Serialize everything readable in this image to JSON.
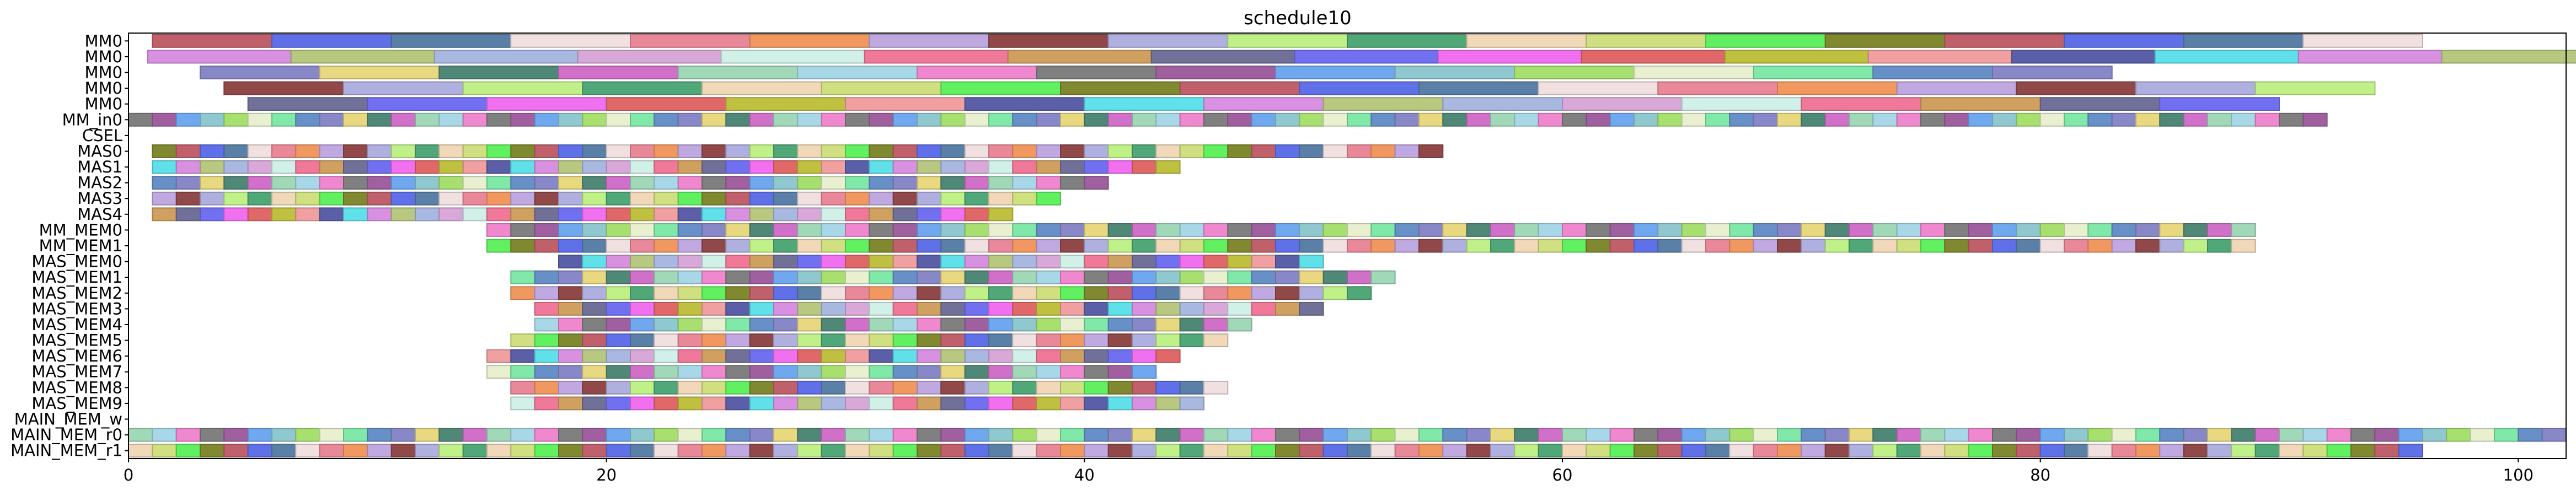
{
  "chart_data": {
    "type": "gantt",
    "title": "schedule10",
    "xlim": [
      0,
      102
    ],
    "xticks": [
      0,
      20,
      40,
      60,
      80,
      100
    ],
    "grid": false,
    "legend": "none",
    "rows": [
      "MM0",
      "MM0",
      "MM0",
      "MM0",
      "MM0",
      "MM_in0",
      "CSEL",
      "MAS0",
      "MAS1",
      "MAS2",
      "MAS3",
      "MAS4",
      "MM_MEM0",
      "MM_MEM1",
      "MAS_MEM0",
      "MAS_MEM1",
      "MAS_MEM2",
      "MAS_MEM3",
      "MAS_MEM4",
      "MAS_MEM5",
      "MAS_MEM6",
      "MAS_MEM7",
      "MAS_MEM8",
      "MAS_MEM9",
      "MAIN_MEM_w",
      "MAIN_MEM_r0",
      "MAIN_MEM_r1"
    ],
    "palette": [
      "#c0606a",
      "#5a5fa8",
      "#a8e070",
      "#6070e8",
      "#60e0e8",
      "#e8f0d0",
      "#5a80a8",
      "#d890e0",
      "#80e8a8",
      "#f0e0e0",
      "#b8c880",
      "#6890c8",
      "#e88898",
      "#a8b8e0",
      "#8888c8",
      "#f09860",
      "#d8a8d8",
      "#e8d880",
      "#c0a8e0",
      "#d0f0e8",
      "#508878",
      "#904848",
      "#f07898",
      "#d070c8",
      "#b0b0e0",
      "#d0a060",
      "#a0d8b8",
      "#c0f088",
      "#707098",
      "#a8d8e8",
      "#50a878",
      "#7070f0",
      "#f088d0",
      "#f0d8b8",
      "#f070f0",
      "#808080",
      "#d0e080",
      "#e06868",
      "#a060a0",
      "#60f060",
      "#c0c040",
      "#70a8f0",
      "#808830",
      "#f0a0a0",
      "#90c8d0"
    ],
    "series": [
      {
        "row": 0,
        "start": 1,
        "spans": [
          5,
          5,
          5,
          5,
          5,
          5,
          5,
          5,
          5,
          5,
          5,
          5,
          5,
          5,
          5,
          5,
          5,
          5,
          5
        ]
      },
      {
        "row": 1,
        "start": 0.8,
        "spans": [
          6,
          6,
          6,
          6,
          6,
          6,
          6,
          6,
          6,
          6,
          6,
          6,
          6,
          6,
          6,
          6,
          6
        ]
      },
      {
        "row": 2,
        "start": 3,
        "spans": [
          5,
          5,
          5,
          5,
          5,
          5,
          5,
          5,
          5,
          5,
          5,
          5,
          5,
          5,
          5,
          5
        ]
      },
      {
        "row": 3,
        "start": 4,
        "spans": [
          5,
          5,
          5,
          5,
          5,
          5,
          5,
          5,
          5,
          5,
          5,
          5,
          5,
          5,
          5,
          5,
          5,
          5
        ]
      },
      {
        "row": 4,
        "start": 5,
        "spans": [
          5,
          5,
          5,
          5,
          5,
          5,
          5,
          5,
          5,
          5,
          5,
          5,
          5,
          5,
          5,
          5,
          5
        ]
      },
      {
        "row": 5,
        "start": 0,
        "spans": [
          1,
          1,
          1,
          1,
          1,
          1,
          1,
          1,
          1,
          1,
          1,
          1,
          1,
          1,
          1,
          1,
          1,
          1,
          1,
          1,
          1,
          1,
          1,
          1,
          1,
          1,
          1,
          1,
          1,
          1,
          1,
          1,
          1,
          1,
          1,
          1,
          1,
          1,
          1,
          1,
          1,
          1,
          1,
          1,
          1,
          1,
          1,
          1,
          1,
          1,
          1,
          1,
          1,
          1,
          1,
          1,
          1,
          1,
          1,
          1,
          1,
          1,
          1,
          1,
          1,
          1,
          1,
          1,
          1,
          1,
          1,
          1,
          1,
          1,
          1,
          1,
          1,
          1,
          1,
          1,
          1,
          1,
          1,
          1,
          1,
          1,
          1,
          1,
          1,
          1,
          1,
          1
        ]
      },
      {
        "row": 7,
        "start": 1,
        "spans": [
          1,
          1,
          1,
          1,
          1,
          1,
          1,
          1,
          1,
          1,
          1,
          1,
          1,
          1,
          1,
          1,
          1,
          1,
          1,
          1,
          1,
          1,
          1,
          1,
          1,
          1,
          1,
          1,
          1,
          1,
          1,
          1,
          1,
          1,
          1,
          1,
          1,
          1,
          1,
          1,
          1,
          1,
          1,
          1,
          1,
          1,
          1,
          1,
          1,
          1,
          1,
          1,
          1,
          1
        ]
      },
      {
        "row": 8,
        "start": 1,
        "spans": [
          1,
          1,
          1,
          1,
          1,
          1,
          1,
          1,
          1,
          1,
          1,
          1,
          1,
          1,
          1,
          1,
          1,
          1,
          1,
          1,
          1,
          1,
          1,
          1,
          1,
          1,
          1,
          1,
          1,
          1,
          1,
          1,
          1,
          1,
          1,
          1,
          1,
          1,
          1,
          1,
          1,
          1,
          1
        ]
      },
      {
        "row": 9,
        "start": 1,
        "spans": [
          1,
          1,
          1,
          1,
          1,
          1,
          1,
          1,
          1,
          1,
          1,
          1,
          1,
          1,
          1,
          1,
          1,
          1,
          1,
          1,
          1,
          1,
          1,
          1,
          1,
          1,
          1,
          1,
          1,
          1,
          1,
          1,
          1,
          1,
          1,
          1,
          1,
          1,
          1,
          1
        ]
      },
      {
        "row": 10,
        "start": 1,
        "spans": [
          1,
          1,
          1,
          1,
          1,
          1,
          1,
          1,
          1,
          1,
          1,
          1,
          1,
          1,
          1,
          1,
          1,
          1,
          1,
          1,
          1,
          1,
          1,
          1,
          1,
          1,
          1,
          1,
          1,
          1,
          1,
          1,
          1,
          1,
          1,
          1,
          1,
          1
        ]
      },
      {
        "row": 11,
        "start": 1,
        "spans": [
          1,
          1,
          1,
          1,
          1,
          1,
          1,
          1,
          1,
          1,
          1,
          1,
          1,
          1,
          1,
          1,
          1,
          1,
          1,
          1,
          1,
          1,
          1,
          1,
          1,
          1,
          1,
          1,
          1,
          1,
          1,
          1,
          1,
          1,
          1,
          1
        ]
      },
      {
        "row": 12,
        "start": 15,
        "spans": [
          1,
          1,
          1,
          1,
          1,
          1,
          1,
          1,
          1,
          1,
          1,
          1,
          1,
          1,
          1,
          1,
          1,
          1,
          1,
          1,
          1,
          1,
          1,
          1,
          1,
          1,
          1,
          1,
          1,
          1,
          1,
          1,
          1,
          1,
          1,
          1,
          1,
          1,
          1,
          1,
          1,
          1,
          1,
          1,
          1,
          1,
          1,
          1,
          1,
          1,
          1,
          1,
          1,
          1,
          1,
          1,
          1,
          1,
          1,
          1,
          1,
          1,
          1,
          1,
          1,
          1,
          1,
          1,
          1,
          1,
          1,
          1,
          1,
          1
        ]
      },
      {
        "row": 13,
        "start": 15,
        "spans": [
          1,
          1,
          1,
          1,
          1,
          1,
          1,
          1,
          1,
          1,
          1,
          1,
          1,
          1,
          1,
          1,
          1,
          1,
          1,
          1,
          1,
          1,
          1,
          1,
          1,
          1,
          1,
          1,
          1,
          1,
          1,
          1,
          1,
          1,
          1,
          1,
          1,
          1,
          1,
          1,
          1,
          1,
          1,
          1,
          1,
          1,
          1,
          1,
          1,
          1,
          1,
          1,
          1,
          1,
          1,
          1,
          1,
          1,
          1,
          1,
          1,
          1,
          1,
          1,
          1,
          1,
          1,
          1,
          1,
          1,
          1,
          1,
          1,
          1
        ]
      },
      {
        "row": 14,
        "start": 18,
        "spans": [
          1,
          1,
          1,
          1,
          1,
          1,
          1,
          1,
          1,
          1,
          1,
          1,
          1,
          1,
          1,
          1,
          1,
          1,
          1,
          1,
          1,
          1,
          1,
          1,
          1,
          1,
          1,
          1,
          1,
          1,
          1,
          1
        ]
      },
      {
        "row": 15,
        "start": 16,
        "spans": [
          1,
          1,
          1,
          1,
          1,
          1,
          1,
          1,
          1,
          1,
          1,
          1,
          1,
          1,
          1,
          1,
          1,
          1,
          1,
          1,
          1,
          1,
          1,
          1,
          1,
          1,
          1,
          1,
          1,
          1,
          1,
          1,
          1,
          1,
          1,
          1,
          1
        ]
      },
      {
        "row": 16,
        "start": 16,
        "spans": [
          1,
          1,
          1,
          1,
          1,
          1,
          1,
          1,
          1,
          1,
          1,
          1,
          1,
          1,
          1,
          1,
          1,
          1,
          1,
          1,
          1,
          1,
          1,
          1,
          1,
          1,
          1,
          1,
          1,
          1,
          1,
          1,
          1,
          1,
          1,
          1
        ]
      },
      {
        "row": 17,
        "start": 17,
        "spans": [
          1,
          1,
          1,
          1,
          1,
          1,
          1,
          1,
          1,
          1,
          1,
          1,
          1,
          1,
          1,
          1,
          1,
          1,
          1,
          1,
          1,
          1,
          1,
          1,
          1,
          1,
          1,
          1,
          1,
          1,
          1,
          1,
          1
        ]
      },
      {
        "row": 18,
        "start": 17,
        "spans": [
          1,
          1,
          1,
          1,
          1,
          1,
          1,
          1,
          1,
          1,
          1,
          1,
          1,
          1,
          1,
          1,
          1,
          1,
          1,
          1,
          1,
          1,
          1,
          1,
          1,
          1,
          1,
          1,
          1,
          1
        ]
      },
      {
        "row": 19,
        "start": 16,
        "spans": [
          1,
          1,
          1,
          1,
          1,
          1,
          1,
          1,
          1,
          1,
          1,
          1,
          1,
          1,
          1,
          1,
          1,
          1,
          1,
          1,
          1,
          1,
          1,
          1,
          1,
          1,
          1,
          1,
          1,
          1
        ]
      },
      {
        "row": 20,
        "start": 15,
        "spans": [
          1,
          1,
          1,
          1,
          1,
          1,
          1,
          1,
          1,
          1,
          1,
          1,
          1,
          1,
          1,
          1,
          1,
          1,
          1,
          1,
          1,
          1,
          1,
          1,
          1,
          1,
          1,
          1,
          1
        ]
      },
      {
        "row": 21,
        "start": 15,
        "spans": [
          1,
          1,
          1,
          1,
          1,
          1,
          1,
          1,
          1,
          1,
          1,
          1,
          1,
          1,
          1,
          1,
          1,
          1,
          1,
          1,
          1,
          1,
          1,
          1,
          1,
          1,
          1,
          1
        ]
      },
      {
        "row": 22,
        "start": 16,
        "spans": [
          1,
          1,
          1,
          1,
          1,
          1,
          1,
          1,
          1,
          1,
          1,
          1,
          1,
          1,
          1,
          1,
          1,
          1,
          1,
          1,
          1,
          1,
          1,
          1,
          1,
          1,
          1,
          1,
          1,
          1
        ]
      },
      {
        "row": 23,
        "start": 16,
        "spans": [
          1,
          1,
          1,
          1,
          1,
          1,
          1,
          1,
          1,
          1,
          1,
          1,
          1,
          1,
          1,
          1,
          1,
          1,
          1,
          1,
          1,
          1,
          1,
          1,
          1,
          1,
          1,
          1,
          1
        ]
      },
      {
        "row": 25,
        "start": 0,
        "spans": [
          1,
          1,
          1,
          1,
          1,
          1,
          1,
          1,
          1,
          1,
          1,
          1,
          1,
          1,
          1,
          1,
          1,
          1,
          1,
          1,
          1,
          1,
          1,
          1,
          1,
          1,
          1,
          1,
          1,
          1,
          1,
          1,
          1,
          1,
          1,
          1,
          1,
          1,
          1,
          1,
          1,
          1,
          1,
          1,
          1,
          1,
          1,
          1,
          1,
          1,
          1,
          1,
          1,
          1,
          1,
          1,
          1,
          1,
          1,
          1,
          1,
          1,
          1,
          1,
          1,
          1,
          1,
          1,
          1,
          1,
          1,
          1,
          1,
          1,
          1,
          1,
          1,
          1,
          1,
          1,
          1,
          1,
          1,
          1,
          1,
          1,
          1,
          1,
          1,
          1,
          1,
          1,
          1,
          1,
          1,
          1,
          1,
          1,
          1,
          1,
          1,
          1
        ]
      },
      {
        "row": 26,
        "start": 0,
        "spans": [
          1,
          1,
          1,
          1,
          1,
          1,
          1,
          1,
          1,
          1,
          1,
          1,
          1,
          1,
          1,
          1,
          1,
          1,
          1,
          1,
          1,
          1,
          1,
          1,
          1,
          1,
          1,
          1,
          1,
          1,
          1,
          1,
          1,
          1,
          1,
          1,
          1,
          1,
          1,
          1,
          1,
          1,
          1,
          1,
          1,
          1,
          1,
          1,
          1,
          1,
          1,
          1,
          1,
          1,
          1,
          1,
          1,
          1,
          1,
          1,
          1,
          1,
          1,
          1,
          1,
          1,
          1,
          1,
          1,
          1,
          1,
          1,
          1,
          1,
          1,
          1,
          1,
          1,
          1,
          1,
          1,
          1,
          1,
          1,
          1,
          1,
          1,
          1,
          1,
          1,
          1,
          1,
          1,
          1,
          1,
          1
        ]
      }
    ]
  }
}
